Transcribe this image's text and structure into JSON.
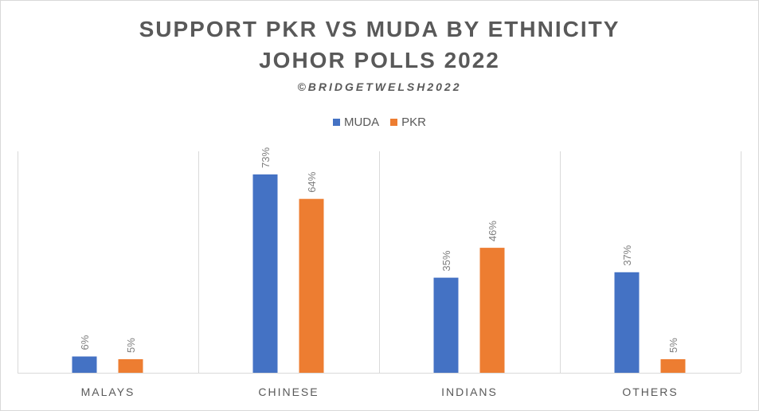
{
  "chart_data": {
    "type": "bar",
    "title": "SUPPORT PKR VS MUDA BY ETHNICITY",
    "title_line2": "JOHOR POLLS 2022",
    "subtitle": "©BRIDGETWELSH2022",
    "categories": [
      "MALAYS",
      "CHINESE",
      "INDIANS",
      "OTHERS"
    ],
    "series": [
      {
        "name": "MUDA",
        "values": [
          6,
          73,
          35,
          37
        ],
        "labels": [
          "6%",
          "73%",
          "35%",
          "37%"
        ],
        "color": "#4472c4"
      },
      {
        "name": "PKR",
        "values": [
          5,
          64,
          46,
          5
        ],
        "labels": [
          "5%",
          "64%",
          "46%",
          "5%"
        ],
        "color": "#ed7d31"
      }
    ],
    "ylim": [
      0,
      73
    ],
    "grid": false,
    "legend_position": "top",
    "value_unit": "%"
  }
}
